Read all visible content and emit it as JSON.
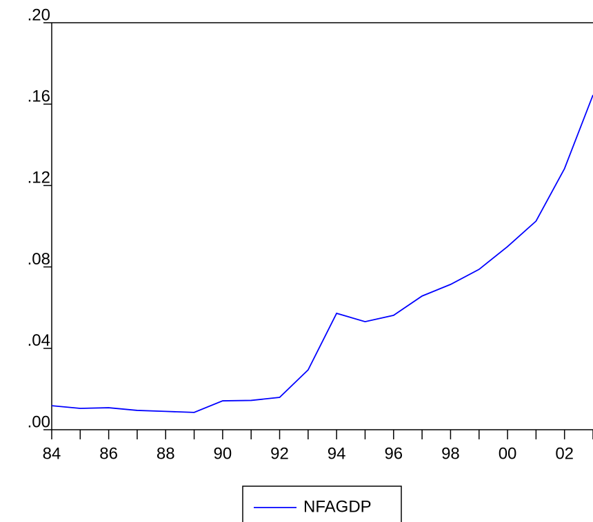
{
  "chart_data": {
    "type": "line",
    "categories": [
      "84",
      null,
      "86",
      null,
      "88",
      null,
      "90",
      null,
      "92",
      null,
      "94",
      null,
      "96",
      null,
      "98",
      null,
      "00",
      null,
      "02",
      null
    ],
    "series": [
      {
        "name": "NFAGDP",
        "color": "#0000ff",
        "values": [
          0.0118,
          0.0105,
          0.0108,
          0.0095,
          0.009,
          0.0085,
          0.0142,
          0.0144,
          0.0159,
          0.0294,
          0.0572,
          0.0531,
          0.0562,
          0.0657,
          0.0714,
          0.0788,
          0.09,
          0.1025,
          0.1283,
          0.1645
        ]
      }
    ],
    "ylim": [
      0,
      0.2
    ],
    "yticks": [
      {
        "value": 0,
        "label": ".00"
      },
      {
        "value": 0.04,
        "label": ".04"
      },
      {
        "value": 0.08,
        "label": ".08"
      },
      {
        "value": 0.12,
        "label": ".12"
      },
      {
        "value": 0.16,
        "label": ".16"
      },
      {
        "value": 0.2,
        "label": ".20"
      }
    ],
    "grid": false
  }
}
